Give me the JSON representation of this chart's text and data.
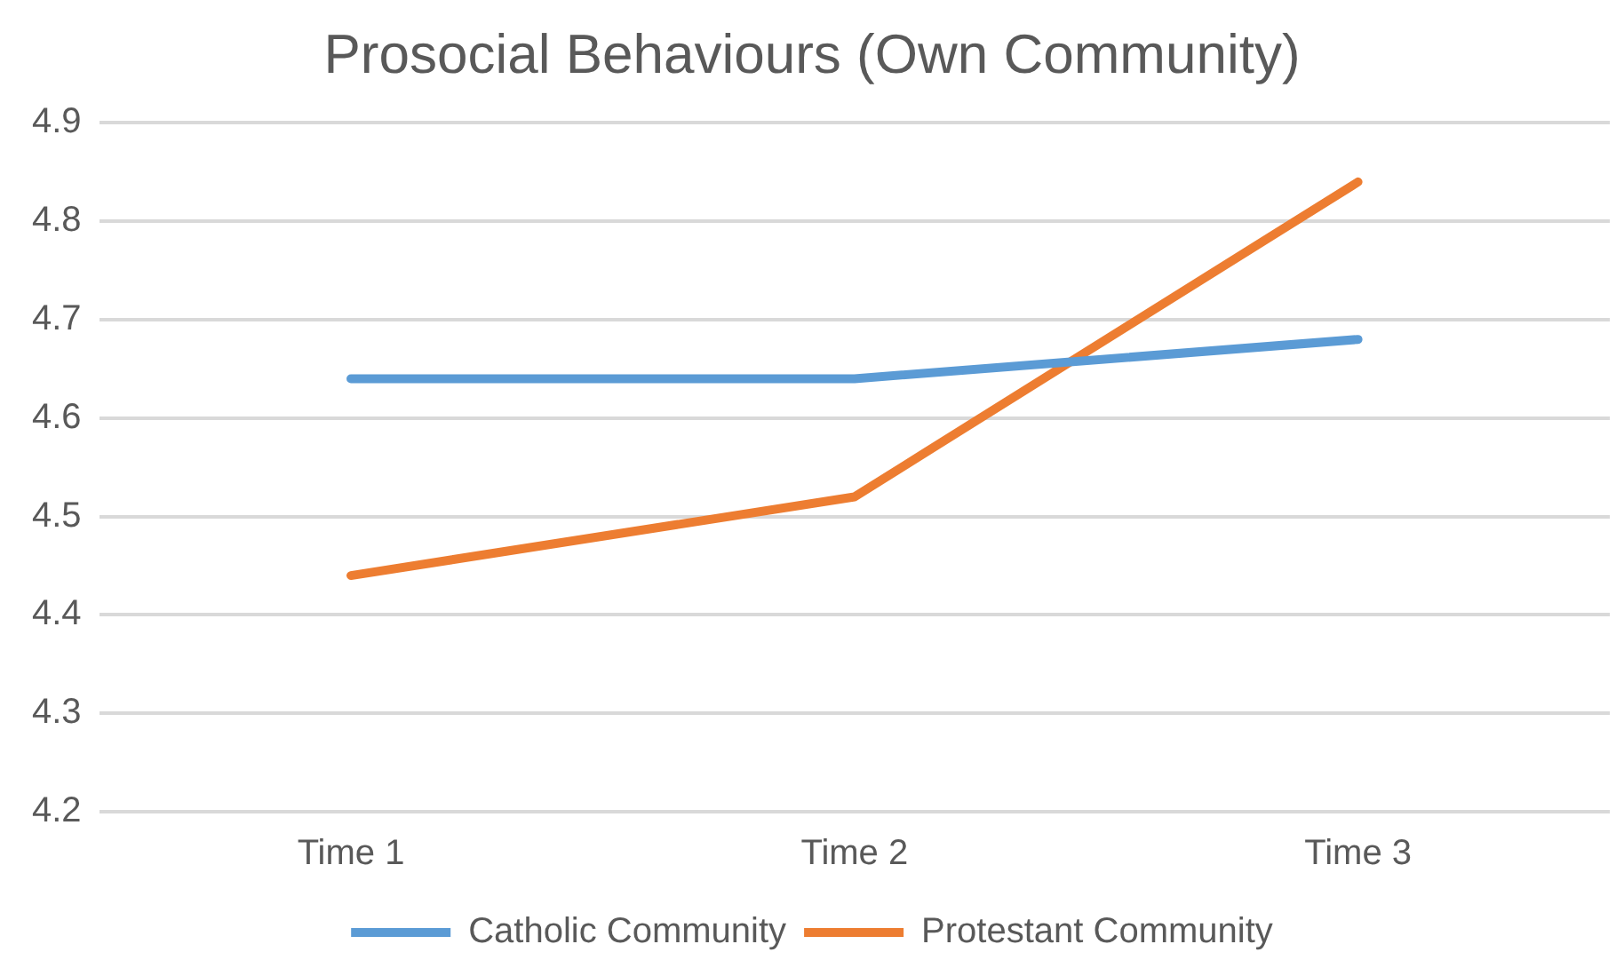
{
  "chart_data": {
    "type": "line",
    "title": "Prosocial Behaviours (Own Community)",
    "categories": [
      "Time 1",
      "Time 2",
      "Time 3"
    ],
    "series": [
      {
        "name": "Catholic Community",
        "color": "#5b9bd5",
        "values": [
          4.64,
          4.64,
          4.68
        ]
      },
      {
        "name": "Protestant Community",
        "color": "#ed7d31",
        "values": [
          4.44,
          4.52,
          4.84
        ]
      }
    ],
    "ylim": [
      4.2,
      4.9
    ],
    "yticks": [
      4.2,
      4.3,
      4.4,
      4.5,
      4.6,
      4.7,
      4.8,
      4.9
    ],
    "grid": "y",
    "legend": "bottom",
    "marker": "none",
    "line_style": "solid"
  }
}
